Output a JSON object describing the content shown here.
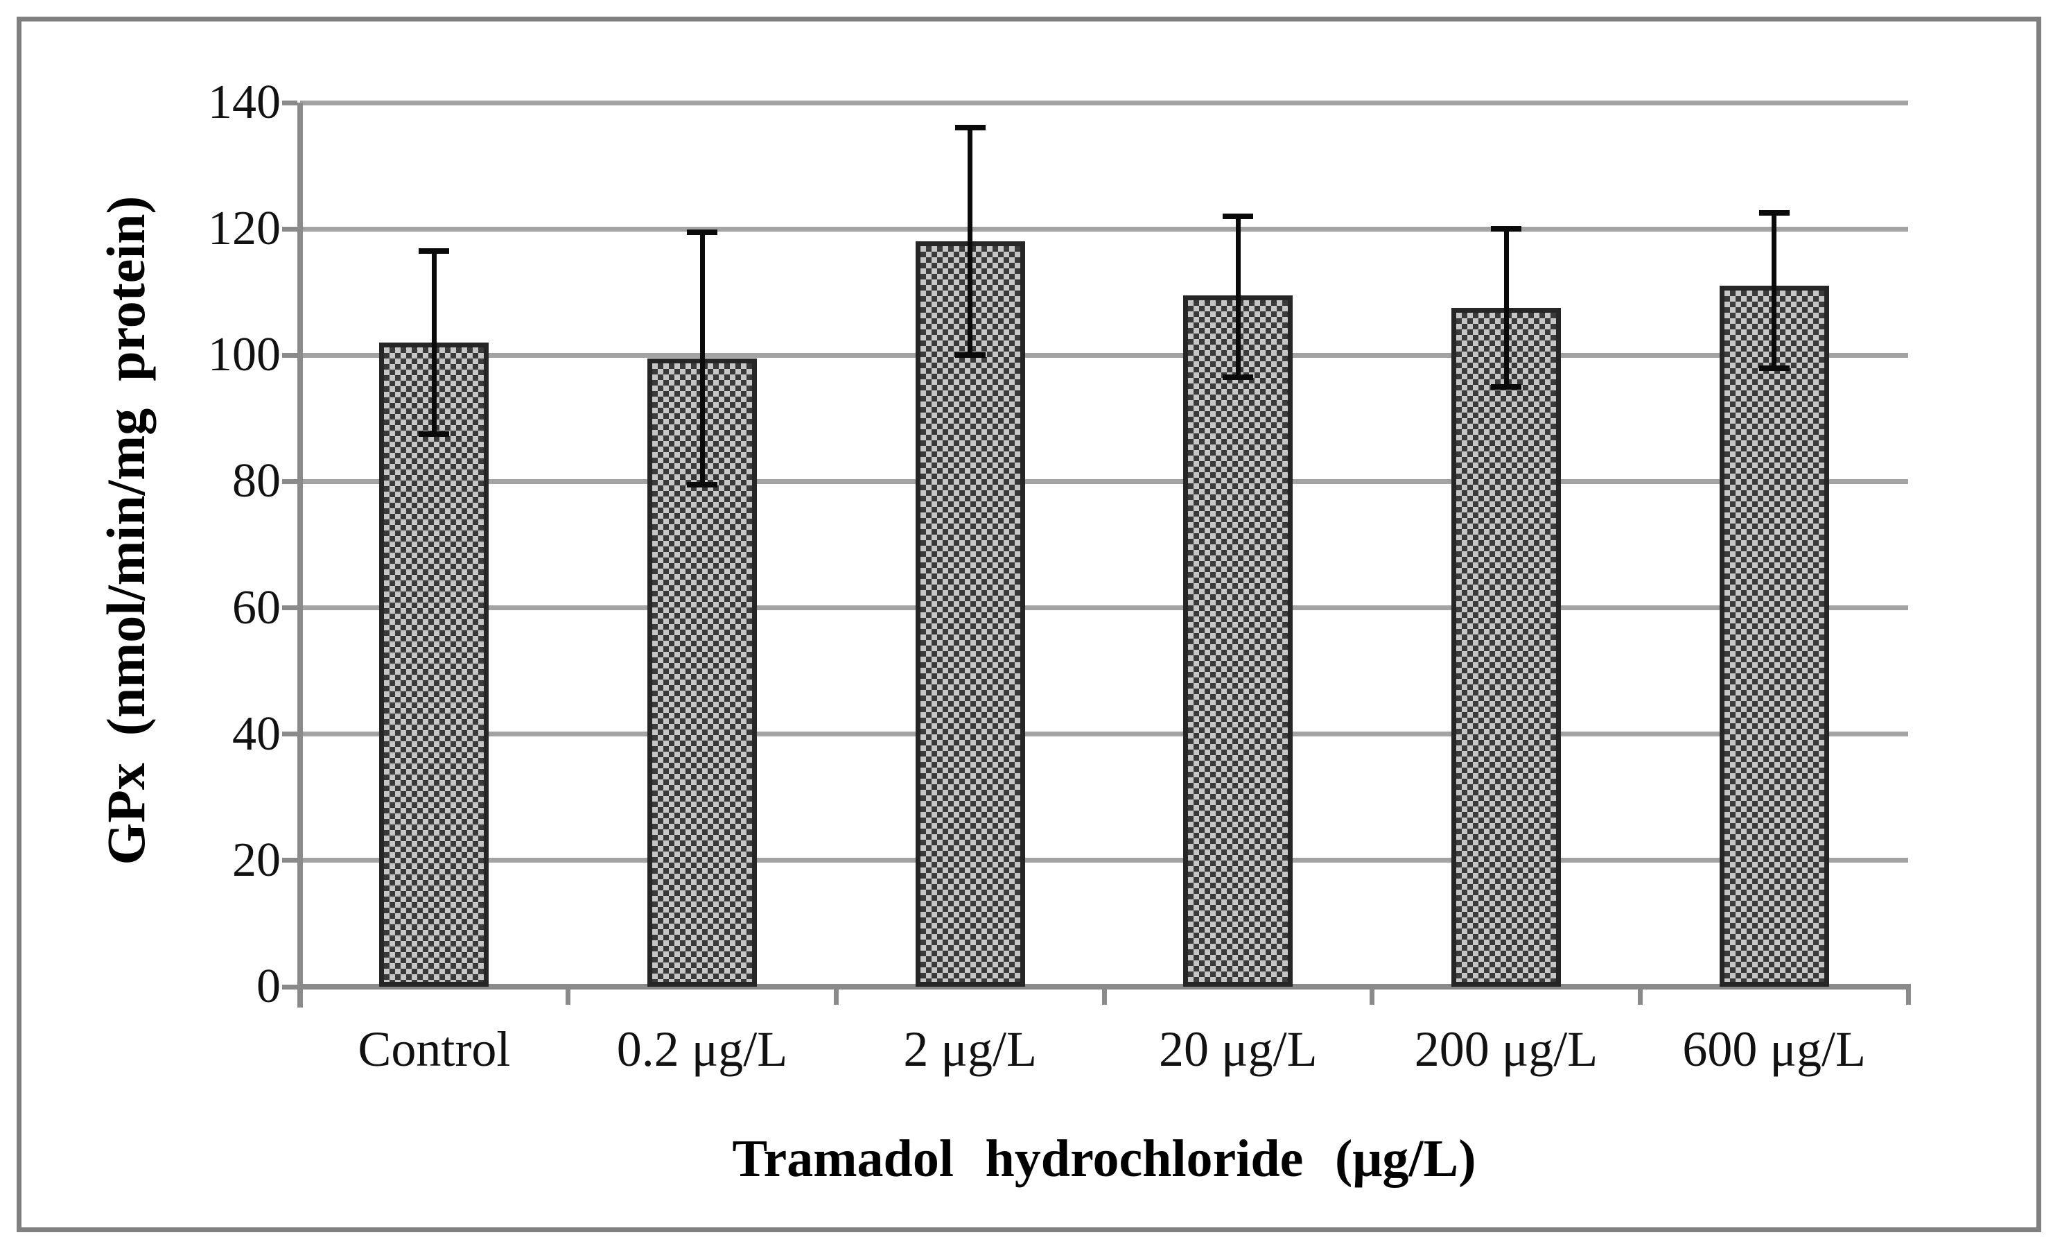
{
  "chart_data": {
    "type": "bar",
    "title": "",
    "xlabel": "Tramadol hydrochloride (μg/L)",
    "ylabel": "GPx (nmol/min/mg protein)",
    "categories": [
      "Control",
      "0.2 μg/L",
      "2 μg/L",
      "20 μg/L",
      "200 μg/L",
      "600 μg/L"
    ],
    "values": [
      102,
      99.5,
      118,
      109.5,
      107.5,
      111
    ],
    "error_up": [
      14.5,
      20,
      18,
      12.5,
      12.5,
      11.5
    ],
    "error_down": [
      14.5,
      20,
      18,
      13,
      12.5,
      13
    ],
    "yticks": [
      0,
      20,
      40,
      60,
      80,
      100,
      120,
      140
    ],
    "ylim": [
      0,
      140
    ],
    "grid": true,
    "legend": "none",
    "colors": {
      "gridline": "#a3a3a3",
      "axis": "#8a8a8a",
      "figure_border": "#808080",
      "bar_pattern_dark": "#3a3a3a",
      "bar_pattern_light": "#c6c6c6",
      "bar_border": "#262626",
      "error_bar": "#0a0a0a"
    }
  }
}
